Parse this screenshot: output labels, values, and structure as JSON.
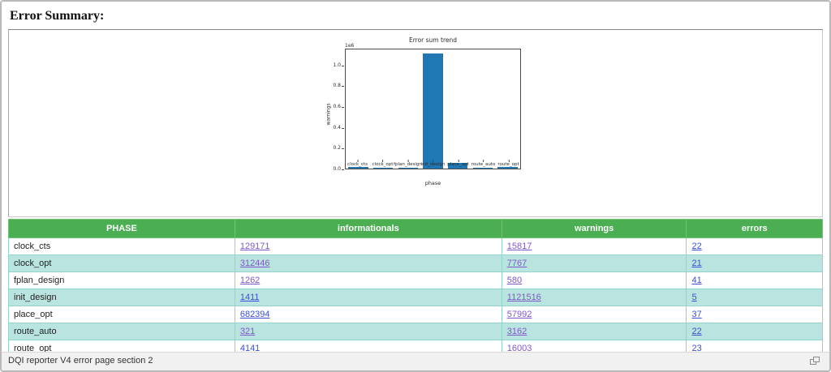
{
  "page": {
    "title": "Error Summary:",
    "footer_text": "DQI reporter V4 error page section 2"
  },
  "chart_data": {
    "type": "bar",
    "title": "Error sum trend",
    "xlabel": "phase",
    "ylabel": "warnings",
    "y_offset_label": "1e6",
    "categories": [
      "clock_cts",
      "clock_opt",
      "fplan_design",
      "init_design",
      "place_opt",
      "route_auto",
      "route_opt"
    ],
    "values": [
      15817,
      7767,
      580,
      1121516,
      57992,
      3162,
      16003
    ],
    "yticks": [
      0.0,
      0.2,
      0.4,
      0.6,
      0.8,
      1.0
    ],
    "ytick_scale": 1000000,
    "ylim": [
      0,
      1160000
    ],
    "bar_color": "#1f77b4",
    "grid": false,
    "legend": "none"
  },
  "table": {
    "columns": [
      "PHASE",
      "informationals",
      "warnings",
      "errors"
    ],
    "rows": [
      {
        "phase": "clock_cts",
        "informationals": "129171",
        "warnings": "15817",
        "errors": "22",
        "visited": [
          true,
          true,
          false
        ]
      },
      {
        "phase": "clock_opt",
        "informationals": "312446",
        "warnings": "7767",
        "errors": "21",
        "visited": [
          true,
          true,
          false
        ]
      },
      {
        "phase": "fplan_design",
        "informationals": "1262",
        "warnings": "580",
        "errors": "41",
        "visited": [
          true,
          true,
          false
        ]
      },
      {
        "phase": "init_design",
        "informationals": "1411",
        "warnings": "1121516",
        "errors": "5",
        "visited": [
          false,
          true,
          false
        ]
      },
      {
        "phase": "place_opt",
        "informationals": "682394",
        "warnings": "57992",
        "errors": "37",
        "visited": [
          false,
          true,
          false
        ]
      },
      {
        "phase": "route_auto",
        "informationals": "321",
        "warnings": "3162",
        "errors": "22",
        "visited": [
          true,
          true,
          false
        ]
      },
      {
        "phase": "route_opt",
        "informationals": "4141",
        "warnings": "16003",
        "errors": "23",
        "visited": [
          false,
          true,
          false
        ]
      }
    ],
    "colors": {
      "header_bg": "#4cae52",
      "header_text": "#ffffff",
      "header_border": "#6ec471",
      "cell_border": "#93d5cc",
      "row_bg": "#ffffff",
      "row_alt_bg": "#b9e4e0",
      "link": "#3a4fd8",
      "link_visited": "#8057cc"
    }
  }
}
